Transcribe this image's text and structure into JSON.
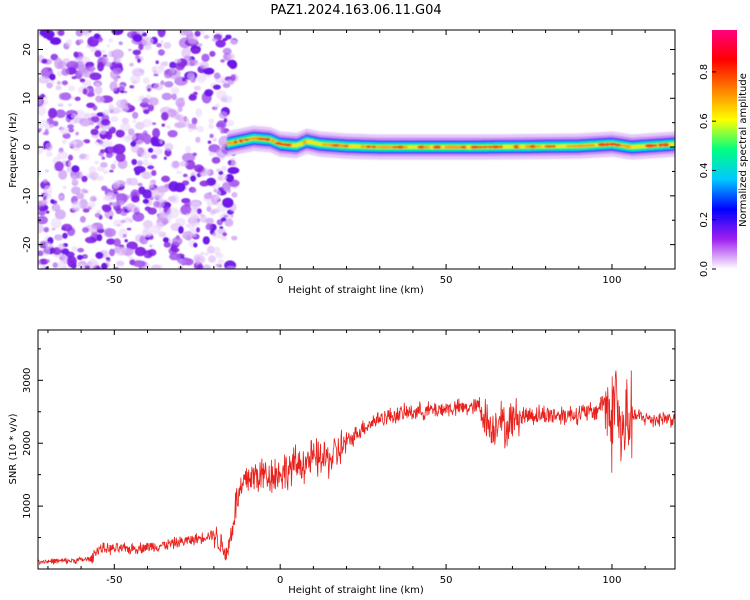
{
  "figure": {
    "title": "PAZ1.2024.163.06.11.G04"
  },
  "chart_data": [
    {
      "type": "heatmap",
      "title": "PAZ1.2024.163.06.11.G04",
      "xlabel": "Height of straight line (km)",
      "ylabel": "Frequency (Hz)",
      "xlim": [
        -73,
        119
      ],
      "ylim": [
        -25,
        24
      ],
      "x_ticks": [
        -50,
        0,
        50,
        100
      ],
      "y_ticks": [
        -20,
        -10,
        0,
        10,
        20
      ],
      "colorbar": {
        "label": "Normalized spectral amplitude",
        "range": [
          0,
          0.97
        ],
        "ticks": [
          "0.0",
          "0.2",
          "0.4",
          "0.6",
          "0.8"
        ],
        "colormap": "gist_rainbow",
        "colors": [
          "#ffffff",
          "#a020f0",
          "#0000ff",
          "#00c8ff",
          "#00ff80",
          "#ffff00",
          "#ff8000",
          "#ff0000",
          "#ff0080"
        ]
      },
      "noise_region": {
        "x_range": [
          -73,
          -16
        ],
        "freq_range": [
          -25,
          24
        ]
      },
      "signal_band": {
        "x_range": [
          -16,
          119
        ],
        "center_freq": [
          {
            "x": -15,
            "f": 0.8
          },
          {
            "x": -8,
            "f": 1.8
          },
          {
            "x": -3,
            "f": 1.5
          },
          {
            "x": 0,
            "f": 0.6
          },
          {
            "x": 5,
            "f": 0.3
          },
          {
            "x": 8,
            "f": 1.2
          },
          {
            "x": 12,
            "f": 0.6
          },
          {
            "x": 20,
            "f": 0.2
          },
          {
            "x": 30,
            "f": 0.0
          },
          {
            "x": 60,
            "f": 0.0
          },
          {
            "x": 90,
            "f": 0.2
          },
          {
            "x": 100,
            "f": 0.6
          },
          {
            "x": 106,
            "f": 0.0
          },
          {
            "x": 119,
            "f": 0.6
          }
        ]
      }
    },
    {
      "type": "line",
      "xlabel": "Height of straight line (km)",
      "ylabel": "SNR (10 * v/v)",
      "xlim": [
        -73,
        119
      ],
      "ylim": [
        0,
        3800
      ],
      "x_ticks": [
        -50,
        0,
        50,
        100
      ],
      "y_ticks": [
        1000,
        2000,
        3000
      ],
      "line_color": "#e8211d",
      "series": [
        {
          "x": [
            -73,
            -63,
            -57,
            -55,
            -45,
            -35,
            -25,
            -20,
            -18,
            -16,
            -15,
            -13,
            -10,
            -5,
            0,
            5,
            10,
            15,
            20,
            25,
            30,
            35,
            40,
            45,
            50,
            55,
            60,
            62,
            64,
            66,
            68,
            70,
            75,
            80,
            85,
            90,
            95,
            98,
            100,
            101,
            102,
            103,
            104,
            105,
            108,
            112,
            116,
            119
          ],
          "y": [
            120,
            130,
            160,
            320,
            320,
            380,
            480,
            560,
            400,
            250,
            500,
            1100,
            1450,
            1500,
            1520,
            1650,
            1750,
            1750,
            2000,
            2250,
            2400,
            2450,
            2500,
            2520,
            2550,
            2560,
            2580,
            2400,
            2200,
            2450,
            2200,
            2400,
            2450,
            2450,
            2450,
            2470,
            2500,
            2700,
            2300,
            2900,
            2400,
            2000,
            2300,
            2450,
            2420,
            2380,
            2400,
            2380
          ]
        }
      ]
    }
  ]
}
